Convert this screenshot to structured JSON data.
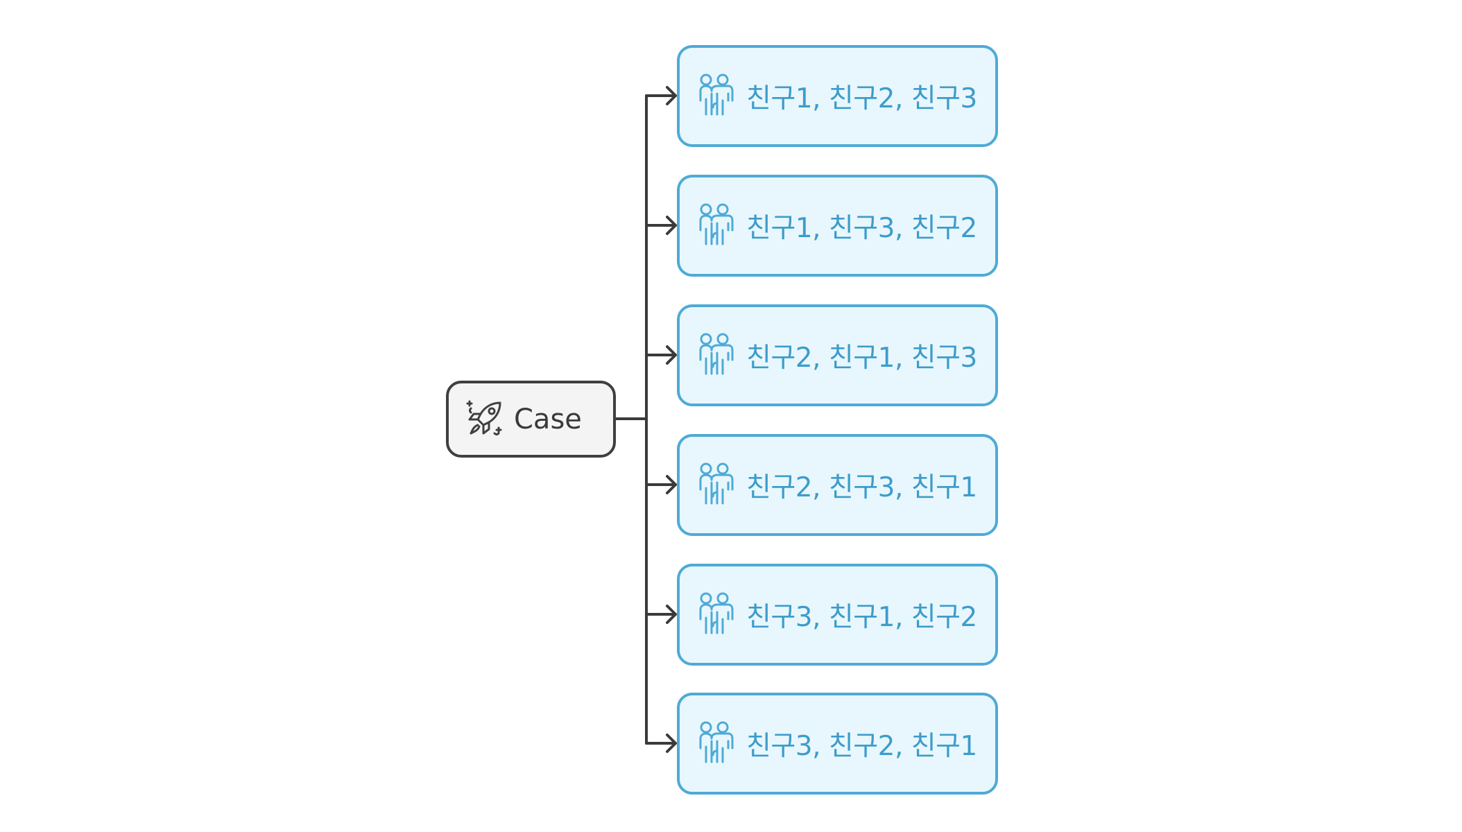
{
  "root": {
    "label": "Case",
    "icon": "rocket-icon"
  },
  "children": [
    {
      "label": "친구1, 친구2, 친구3",
      "icon": "people-icon"
    },
    {
      "label": "친구1, 친구3, 친구2",
      "icon": "people-icon"
    },
    {
      "label": "친구2, 친구1, 친구3",
      "icon": "people-icon"
    },
    {
      "label": "친구2, 친구3, 친구1",
      "icon": "people-icon"
    },
    {
      "label": "친구3, 친구1, 친구2",
      "icon": "people-icon"
    },
    {
      "label": "친구3, 친구2, 친구1",
      "icon": "people-icon"
    }
  ],
  "colors": {
    "root_border": "#3f3f3f",
    "root_fill": "#f4f4f4",
    "child_border": "#4eaad6",
    "child_fill": "#e8f7fd",
    "child_text": "#3d9ccb",
    "connector": "#3a3a3a"
  }
}
